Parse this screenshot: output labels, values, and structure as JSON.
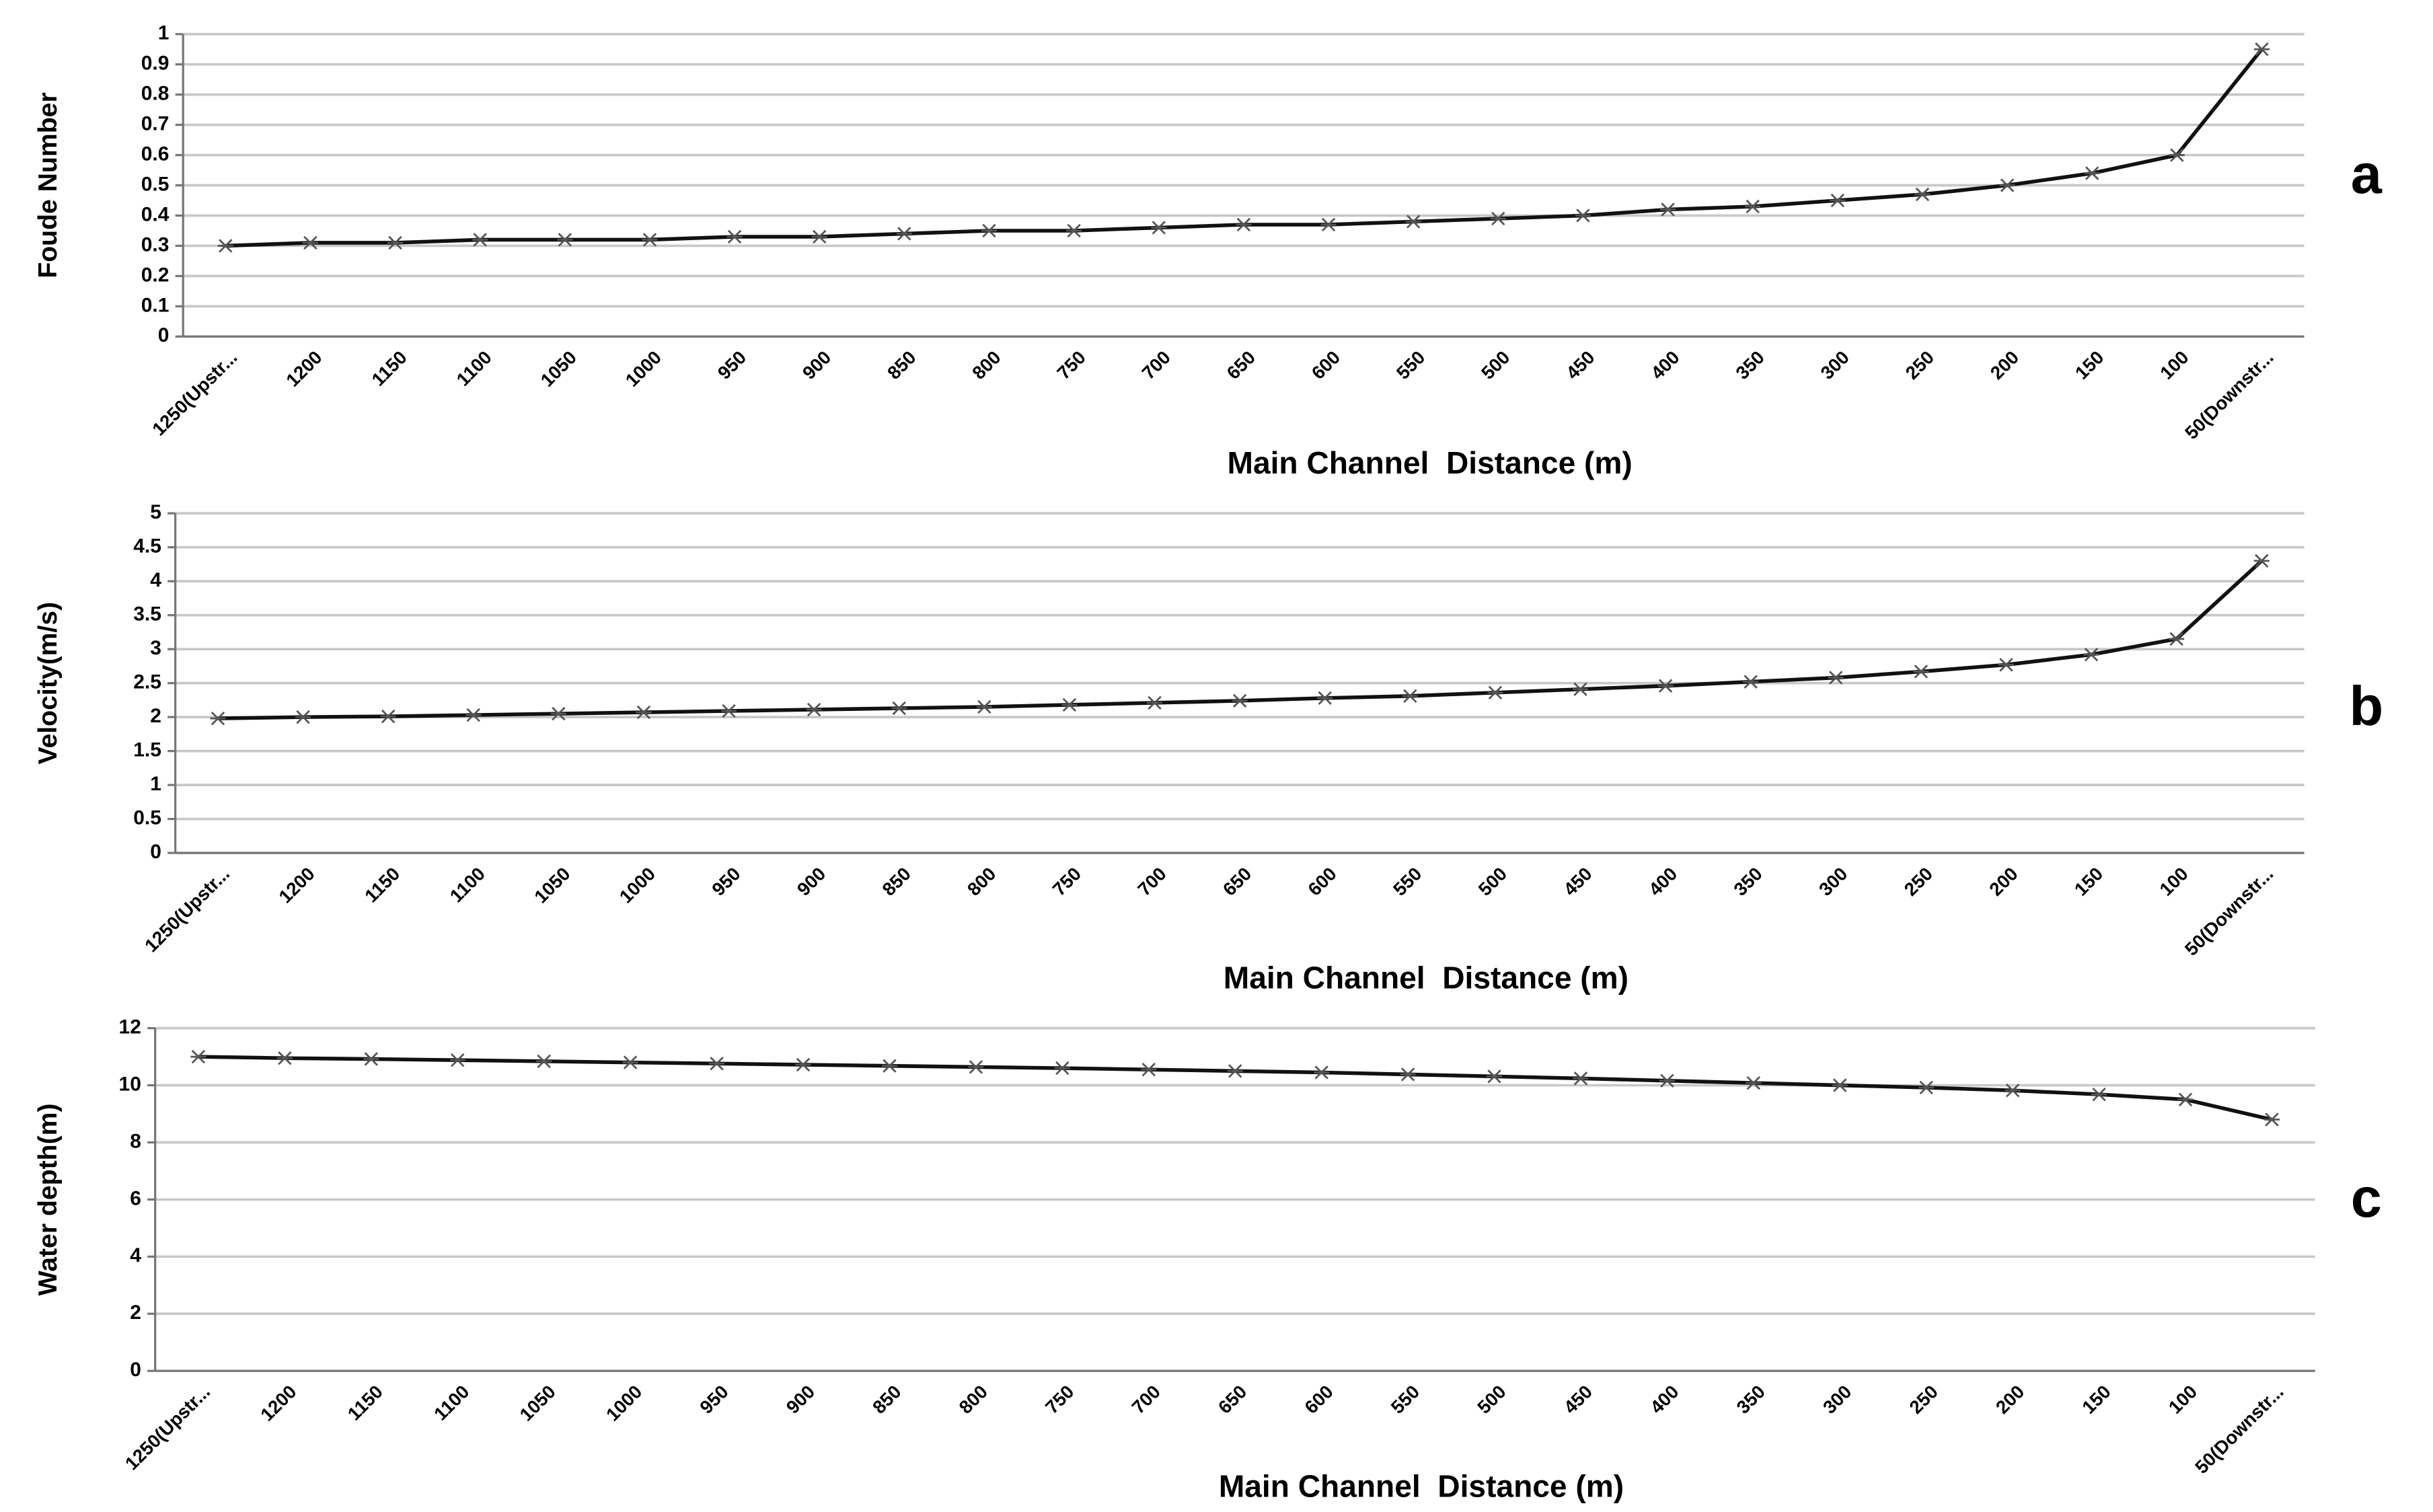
{
  "chart_data": [
    {
      "type": "line",
      "panel_label": "a",
      "y_label": "Foude Number",
      "x_label": "Main Channel  Distance (m)",
      "categories": [
        "1250(Upstr...",
        "1200",
        "1150",
        "1100",
        "1050",
        "1000",
        "950",
        "900",
        "850",
        "800",
        "750",
        "700",
        "650",
        "600",
        "550",
        "500",
        "450",
        "400",
        "350",
        "300",
        "250",
        "200",
        "150",
        "100",
        "50(Downstr..."
      ],
      "values": [
        0.3,
        0.31,
        0.31,
        0.32,
        0.32,
        0.32,
        0.33,
        0.33,
        0.34,
        0.35,
        0.35,
        0.36,
        0.37,
        0.37,
        0.38,
        0.39,
        0.4,
        0.42,
        0.43,
        0.45,
        0.47,
        0.5,
        0.54,
        0.6,
        0.95
      ],
      "color": "#111111",
      "ylim": [
        0,
        1
      ],
      "yticks": [
        0,
        0.1,
        0.2,
        0.3,
        0.4,
        0.5,
        0.6,
        0.7,
        0.8,
        0.9,
        1
      ],
      "grid": true
    },
    {
      "type": "line",
      "panel_label": "b",
      "y_label": "Velocity(m/s)",
      "x_label": "Main Channel  Distance (m)",
      "categories": [
        "1250(Upstr...",
        "1200",
        "1150",
        "1100",
        "1050",
        "1000",
        "950",
        "900",
        "850",
        "800",
        "750",
        "700",
        "650",
        "600",
        "550",
        "500",
        "450",
        "400",
        "350",
        "300",
        "250",
        "200",
        "150",
        "100",
        "50(Downstr..."
      ],
      "values": [
        1.98,
        2.0,
        2.01,
        2.03,
        2.05,
        2.07,
        2.09,
        2.11,
        2.13,
        2.15,
        2.18,
        2.21,
        2.24,
        2.28,
        2.31,
        2.36,
        2.41,
        2.46,
        2.52,
        2.58,
        2.67,
        2.77,
        2.92,
        3.15,
        4.3
      ],
      "color": "#111111",
      "ylim": [
        0,
        5
      ],
      "yticks": [
        0,
        0.5,
        1,
        1.5,
        2,
        2.5,
        3,
        3.5,
        4,
        4.5,
        5
      ],
      "grid": true
    },
    {
      "type": "line",
      "panel_label": "c",
      "y_label": "Water depth(m)",
      "x_label": "Main Channel  Distance (m)",
      "categories": [
        "1250(Upstr...",
        "1200",
        "1150",
        "1100",
        "1050",
        "1000",
        "950",
        "900",
        "850",
        "800",
        "750",
        "700",
        "650",
        "600",
        "550",
        "500",
        "450",
        "400",
        "350",
        "300",
        "250",
        "200",
        "150",
        "100",
        "50(Downstr..."
      ],
      "values": [
        11.0,
        10.95,
        10.92,
        10.88,
        10.84,
        10.8,
        10.76,
        10.72,
        10.68,
        10.64,
        10.6,
        10.55,
        10.5,
        10.45,
        10.38,
        10.31,
        10.24,
        10.16,
        10.08,
        10.0,
        9.92,
        9.82,
        9.68,
        9.5,
        8.8
      ],
      "color": "#111111",
      "ylim": [
        0,
        12
      ],
      "yticks": [
        0,
        2,
        4,
        6,
        8,
        10,
        12
      ],
      "grid": true
    }
  ]
}
